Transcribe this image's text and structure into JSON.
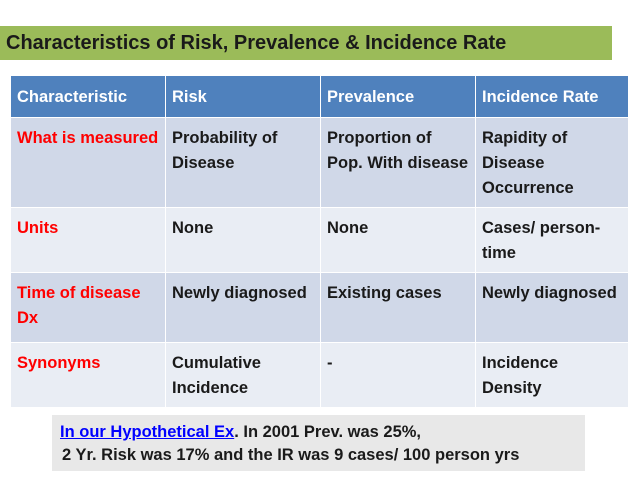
{
  "title": "Characteristics of Risk, Prevalence & Incidence Rate",
  "table": {
    "headers": [
      "Characteristic",
      "Risk",
      "Prevalence",
      "Incidence Rate"
    ],
    "rows": [
      {
        "label": "What is measured",
        "risk": "Probability of Disease",
        "prevalence": "Proportion of Pop. With disease",
        "incidence": "Rapidity of Disease Occurrence"
      },
      {
        "label": "Units",
        "risk": "None",
        "prevalence": "None",
        "incidence": "Cases/ person-time"
      },
      {
        "label": "Time of disease Dx",
        "risk": "Newly diagnosed",
        "prevalence": "Existing cases",
        "incidence": "Newly diagnosed"
      },
      {
        "label": "Synonyms",
        "risk": "Cumulative Incidence",
        "prevalence": "-",
        "incidence": "Incidence Density"
      }
    ]
  },
  "note": {
    "link_text": "In our Hypothetical Ex",
    "line1_rest": ". In 2001 Prev. was 25%,",
    "line2": "2 Yr. Risk was 17% and the IR was 9 cases/ 100 person yrs"
  },
  "colors": {
    "title_bg": "#9bbb59",
    "header_bg": "#4f81bd",
    "row_odd_bg": "#d0d8e8",
    "row_even_bg": "#e9edf4",
    "row_label": "#ff0000",
    "link": "#0000ff"
  }
}
